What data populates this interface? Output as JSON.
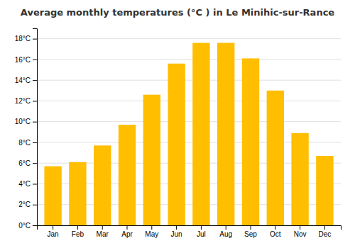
{
  "chart_data": {
    "type": "bar",
    "title": "Average monthly temperatures (°C ) in Le Minihic-sur-Rance",
    "categories": [
      "Jan",
      "Feb",
      "Mar",
      "Apr",
      "May",
      "Jun",
      "Jul",
      "Aug",
      "Sep",
      "Oct",
      "Nov",
      "Dec"
    ],
    "values": [
      5.7,
      6.1,
      7.7,
      9.7,
      12.6,
      15.6,
      17.6,
      17.6,
      16.1,
      13.0,
      8.9,
      6.7
    ],
    "color": "#FFBE00",
    "ylim": [
      0,
      19
    ],
    "yticks": [
      {
        "value": 0,
        "label": "0°C"
      },
      {
        "value": 2,
        "label": "2°C"
      },
      {
        "value": 4,
        "label": "4°C"
      },
      {
        "value": 6,
        "label": "6°C"
      },
      {
        "value": 8,
        "label": "8°C"
      },
      {
        "value": 10,
        "label": "10°C"
      },
      {
        "value": 12,
        "label": "12°C"
      },
      {
        "value": 14,
        "label": "14°C"
      },
      {
        "value": 16,
        "label": "16°C"
      },
      {
        "value": 18,
        "label": "18°C"
      }
    ],
    "grid": true
  }
}
